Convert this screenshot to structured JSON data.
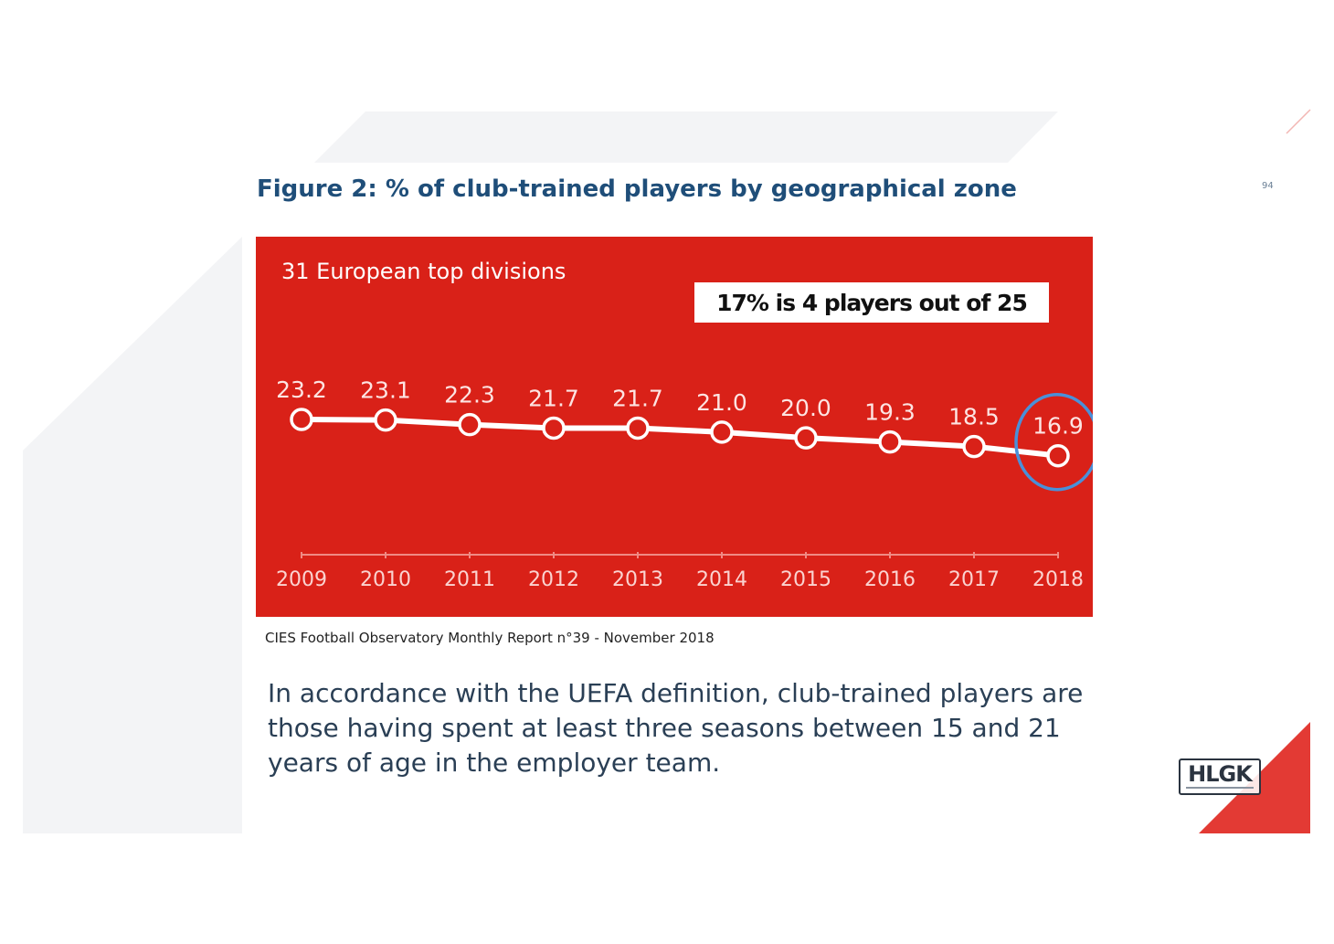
{
  "slide": {
    "page_number": "94",
    "source": "CIES Football Observatory Monthly Report n°39 - November 2018",
    "body_text": "In accordance with the UEFA definition, club-trained players are those having spent at least three seasons between 15 and 21 years of age in the employer team.",
    "logo_text": "HLGK",
    "colors": {
      "panel": "#d92118",
      "title": "#1f4e79",
      "highlight_circle": "#4a90d9",
      "accent_triangle": "#e33a34"
    }
  },
  "chart_data": {
    "type": "line",
    "title": "Figure 2: % of club-trained players by geographical zone",
    "subtitle": "31 European top divisions",
    "annotation": "17% is 4 players out of 25",
    "x": [
      "2009",
      "2010",
      "2011",
      "2012",
      "2013",
      "2014",
      "2015",
      "2016",
      "2017",
      "2018"
    ],
    "y": [
      23.2,
      23.1,
      22.3,
      21.7,
      21.7,
      21.0,
      20.0,
      19.3,
      18.5,
      16.9
    ],
    "data_labels": [
      "23.2",
      "23.1",
      "22.3",
      "21.7",
      "21.7",
      "21.0",
      "20.0",
      "19.3",
      "18.5",
      "16.9"
    ],
    "highlighted_point": "2018",
    "xlabel": "",
    "ylabel": "",
    "grid": false,
    "legend": false
  }
}
